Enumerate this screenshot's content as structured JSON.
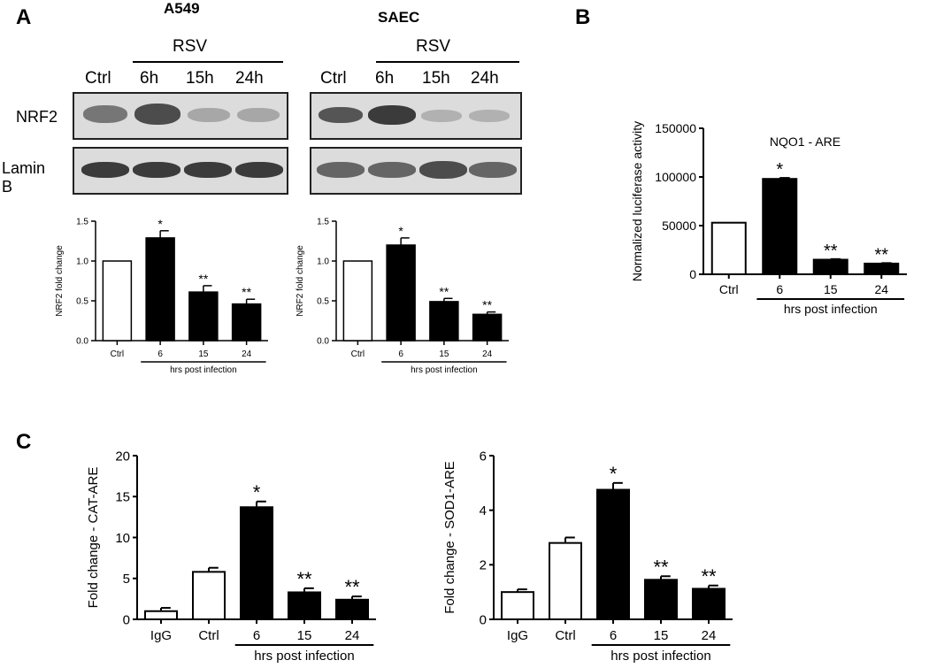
{
  "panels": {
    "A": "A",
    "B": "B",
    "C": "C"
  },
  "blot_a549": {
    "title": "A549",
    "treatment": "RSV",
    "lanes": [
      "Ctrl",
      "6h",
      "15h",
      "24h"
    ],
    "rows": [
      "NRF2",
      "Lamin B"
    ],
    "nrf2_intensity": [
      0.6,
      0.8,
      0.3,
      0.3
    ],
    "laminb_intensity": [
      0.9,
      0.9,
      0.9,
      0.9
    ]
  },
  "blot_saec": {
    "title": "SAEC",
    "treatment": "RSV",
    "lanes": [
      "Ctrl",
      "6h",
      "15h",
      "24h"
    ],
    "nrf2_intensity": [
      0.7,
      0.85,
      0.25,
      0.25
    ],
    "laminb_intensity": [
      0.9,
      0.9,
      0.9,
      0.9
    ]
  },
  "chart_data": [
    {
      "id": "a549-bar",
      "type": "bar",
      "ylabel": "NRF2 fold change",
      "categories": [
        "Ctrl",
        "6",
        "15",
        "24"
      ],
      "values": [
        1.0,
        1.29,
        0.61,
        0.46
      ],
      "errors": [
        0,
        0.09,
        0.08,
        0.06
      ],
      "fills": [
        "#ffffff",
        "#000000",
        "#000000",
        "#000000"
      ],
      "annotations": [
        "",
        "*",
        "**",
        "**"
      ],
      "ylim": [
        0,
        1.5
      ],
      "yticks": [
        "0.0",
        "0.5",
        "1.0",
        "1.5"
      ],
      "group_label": "hrs post infection",
      "group_span": [
        "6",
        "24"
      ]
    },
    {
      "id": "saec-bar",
      "type": "bar",
      "ylabel": "NRF2 fold change",
      "categories": [
        "Ctrl",
        "6",
        "15",
        "24"
      ],
      "values": [
        1.0,
        1.2,
        0.49,
        0.33
      ],
      "errors": [
        0,
        0.09,
        0.04,
        0.03
      ],
      "fills": [
        "#ffffff",
        "#000000",
        "#000000",
        "#000000"
      ],
      "annotations": [
        "",
        "*",
        "**",
        "**"
      ],
      "ylim": [
        0,
        1.5
      ],
      "yticks": [
        "0.0",
        "0.5",
        "1.0",
        "1.5"
      ],
      "group_label": "hrs post infection",
      "group_span": [
        "6",
        "24"
      ]
    },
    {
      "id": "nqo1-bar",
      "type": "bar",
      "title": "NQO1 - ARE",
      "ylabel": "Normalized luciferase activity",
      "categories": [
        "Ctrl",
        "6",
        "15",
        "24"
      ],
      "values": [
        53000,
        98000,
        15000,
        11000
      ],
      "errors": [
        0,
        1000,
        600,
        500
      ],
      "fills": [
        "#ffffff",
        "#000000",
        "#000000",
        "#000000"
      ],
      "annotations": [
        "",
        "*",
        "**",
        "**"
      ],
      "ylim": [
        0,
        150000
      ],
      "yticks": [
        "0",
        "50000",
        "100000",
        "150000"
      ],
      "group_label": "hrs post infection",
      "group_span": [
        "6",
        "24"
      ]
    },
    {
      "id": "cat-bar",
      "type": "bar",
      "ylabel": "Fold change - CAT-ARE",
      "categories": [
        "IgG",
        "Ctrl",
        "6",
        "15",
        "24"
      ],
      "values": [
        1.0,
        5.8,
        13.7,
        3.3,
        2.4
      ],
      "errors": [
        0.4,
        0.5,
        0.7,
        0.5,
        0.4
      ],
      "fills": [
        "#ffffff",
        "#ffffff",
        "#000000",
        "#000000",
        "#000000"
      ],
      "annotations": [
        "",
        "",
        "*",
        "**",
        "**"
      ],
      "ylim": [
        0,
        20
      ],
      "yticks": [
        "0",
        "5",
        "10",
        "15",
        "20"
      ],
      "group_label": "hrs post infection",
      "group_span": [
        "6",
        "24"
      ]
    },
    {
      "id": "sod1-bar",
      "type": "bar",
      "ylabel": "Fold change - SOD1-ARE",
      "categories": [
        "IgG",
        "Ctrl",
        "6",
        "15",
        "24"
      ],
      "values": [
        1.0,
        2.8,
        4.75,
        1.45,
        1.12
      ],
      "errors": [
        0.1,
        0.2,
        0.25,
        0.13,
        0.12
      ],
      "fills": [
        "#ffffff",
        "#ffffff",
        "#000000",
        "#000000",
        "#000000"
      ],
      "annotations": [
        "",
        "",
        "*",
        "**",
        "**"
      ],
      "ylim": [
        0,
        6
      ],
      "yticks": [
        "0",
        "2",
        "4",
        "6"
      ],
      "group_label": "hrs post infection",
      "group_span": [
        "6",
        "24"
      ]
    }
  ]
}
